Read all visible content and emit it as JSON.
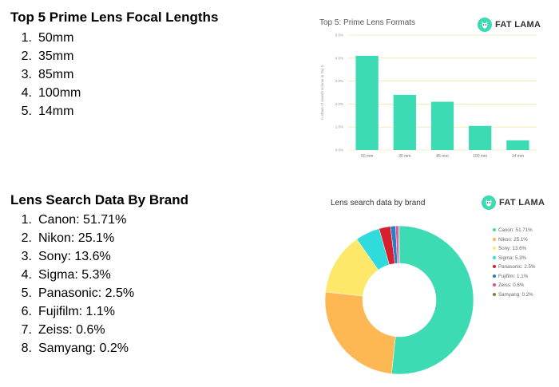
{
  "focal_list": {
    "title": "Top 5 Prime Lens Focal Lengths",
    "items": [
      {
        "num": "1.",
        "text": "50mm"
      },
      {
        "num": "2.",
        "text": "35mm"
      },
      {
        "num": "3.",
        "text": "85mm"
      },
      {
        "num": "4.",
        "text": "100mm"
      },
      {
        "num": "5.",
        "text": "14mm"
      }
    ]
  },
  "brand_list": {
    "title": "Lens Search Data By Brand",
    "items": [
      {
        "num": "1.",
        "text": "Canon: 51.71%"
      },
      {
        "num": "2.",
        "text": "Nikon: 25.1%"
      },
      {
        "num": "3.",
        "text": "Sony: 13.6%"
      },
      {
        "num": "4.",
        "text": "Sigma: 5.3%"
      },
      {
        "num": "5.",
        "text": "Panasonic: 2.5%"
      },
      {
        "num": "6.",
        "text": "Fujifilm: 1.1%"
      },
      {
        "num": "7.",
        "text": "Zeiss: 0.6%"
      },
      {
        "num": "8.",
        "text": "Samyang: 0.2%"
      }
    ]
  },
  "logo": {
    "text": "FAT LAMA",
    "icon": "llama-icon",
    "color": "#3ddbb4"
  },
  "chart_data": [
    {
      "type": "bar",
      "title": "Top 5: Prime Lens Formats",
      "xlabel": "",
      "ylabel": "% share of search volume in Top 5",
      "categories": [
        "50 mm",
        "35 mm",
        "85 mm",
        "100 mm",
        "14 mm"
      ],
      "values": [
        4.1,
        2.4,
        2.1,
        1.05,
        0.42
      ],
      "ylim": [
        0,
        5
      ],
      "yticks": [
        "0.0%",
        "1.0%",
        "2.0%",
        "3.0%",
        "4.0%",
        "5.0%"
      ],
      "grid": true,
      "color": "#3ddbb4",
      "gridline_color": "#f2df8a"
    },
    {
      "type": "pie",
      "donut": true,
      "title": "Lens search data by brand",
      "legend_position": "right",
      "labels": [
        "Canon: 51.71%",
        "Nikon: 25.1%",
        "Sony: 13.6%",
        "Sigma: 5.3%",
        "Panasonic: 2.5%",
        "Fujifilm: 1.1%",
        "Zeiss: 0.6%",
        "Samyang: 0.2%"
      ],
      "values": [
        51.71,
        25.1,
        13.6,
        5.3,
        2.5,
        1.1,
        0.6,
        0.2
      ],
      "colors": [
        "#3ddbb4",
        "#fdb853",
        "#fde86a",
        "#2fdbdb",
        "#d81f30",
        "#2680c4",
        "#e24ba0",
        "#6a8f34"
      ]
    }
  ]
}
